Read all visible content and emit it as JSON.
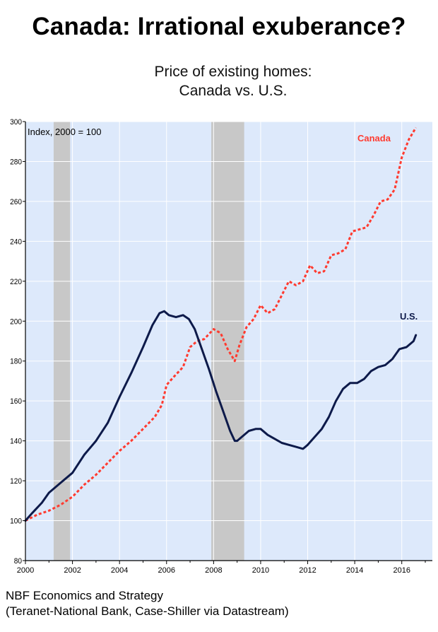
{
  "title": "Canada: Irrational exuberance?",
  "subtitle_line1": "Price of existing homes:",
  "subtitle_line2": "Canada vs. U.S.",
  "footer_line1": "NBF Economics and Strategy",
  "footer_line2": "(Teranet-National Bank, Case-Shiller via Datastream)",
  "colors": {
    "plot_background": "#dde9fb",
    "recession_shading": "#c8c8c8",
    "canada": "#ff3b30",
    "us": "#0d1a4a",
    "grid": "#ffffff"
  },
  "chart_data": {
    "type": "line",
    "annotation": "Index, 2000 = 100",
    "xlim": [
      2000,
      2017.3
    ],
    "ylim": [
      80,
      300
    ],
    "grid": true,
    "x_ticks": [
      "2000",
      "2002",
      "2004",
      "2006",
      "2008",
      "2010",
      "2012",
      "2014",
      "2016"
    ],
    "y_ticks": [
      "80",
      "100",
      "120",
      "140",
      "160",
      "180",
      "200",
      "220",
      "240",
      "260",
      "280",
      "300"
    ],
    "recessions": [
      [
        2001.2,
        2001.9
      ],
      [
        2007.9,
        2009.3
      ]
    ],
    "series": [
      {
        "name": "Canada",
        "style": "dotted",
        "x": [
          2000,
          2000.5,
          2001.0,
          2001.5,
          2002.0,
          2002.5,
          2003.0,
          2003.5,
          2004.0,
          2004.5,
          2005.0,
          2005.5,
          2005.8,
          2006.0,
          2006.3,
          2006.7,
          2007.0,
          2007.3,
          2007.6,
          2008.0,
          2008.3,
          2008.6,
          2008.9,
          2009.1,
          2009.4,
          2009.7,
          2010.0,
          2010.3,
          2010.6,
          2010.9,
          2011.2,
          2011.5,
          2011.8,
          2012.1,
          2012.4,
          2012.7,
          2013.0,
          2013.3,
          2013.6,
          2013.9,
          2014.2,
          2014.5,
          2014.8,
          2015.1,
          2015.4,
          2015.7,
          2016.0,
          2016.3,
          2016.6
        ],
        "y": [
          100,
          103,
          105,
          108,
          112,
          118,
          123,
          129,
          135,
          140,
          146,
          152,
          158,
          168,
          172,
          177,
          187,
          190,
          191,
          196,
          194,
          186,
          180,
          188,
          197,
          201,
          208,
          204,
          206,
          213,
          220,
          218,
          220,
          228,
          224,
          225,
          233,
          234,
          236,
          245,
          246,
          247,
          253,
          260,
          261,
          266,
          282,
          291,
          297
        ]
      },
      {
        "name": "U.S.",
        "style": "solid",
        "x": [
          2000,
          2000.3,
          2000.7,
          2001.0,
          2001.5,
          2002.0,
          2002.5,
          2003.0,
          2003.5,
          2004.0,
          2004.5,
          2005.0,
          2005.4,
          2005.7,
          2005.9,
          2006.1,
          2006.4,
          2006.7,
          2006.95,
          2007.2,
          2007.5,
          2007.8,
          2008.1,
          2008.4,
          2008.7,
          2008.9,
          2009.0,
          2009.2,
          2009.5,
          2009.8,
          2010.0,
          2010.3,
          2010.6,
          2010.9,
          2011.2,
          2011.5,
          2011.8,
          2012.0,
          2012.3,
          2012.6,
          2012.9,
          2013.2,
          2013.5,
          2013.8,
          2014.1,
          2014.4,
          2014.7,
          2015.0,
          2015.3,
          2015.6,
          2015.9,
          2016.2,
          2016.5,
          2016.6
        ],
        "y": [
          100,
          104,
          109,
          114,
          119,
          124,
          133,
          140,
          149,
          162,
          174,
          187,
          198,
          204,
          205,
          203,
          202,
          203,
          201,
          196,
          186,
          176,
          165,
          155,
          145,
          140,
          140,
          142,
          145,
          146,
          146,
          143,
          141,
          139,
          138,
          137,
          136,
          138,
          142,
          146,
          152,
          160,
          166,
          169,
          169,
          171,
          175,
          177,
          178,
          181,
          186,
          187,
          190,
          193
        ]
      }
    ]
  }
}
